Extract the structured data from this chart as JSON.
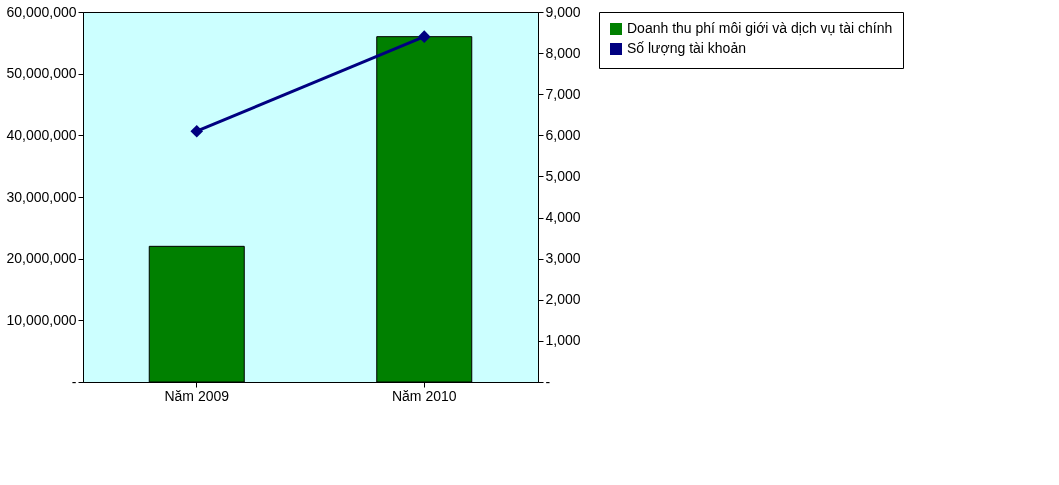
{
  "chart_data": {
    "type": "bar",
    "categories": [
      "Năm 2009",
      "Năm 2010"
    ],
    "series": [
      {
        "name": "Doanh thu phí môi giới và dịch vụ tài chính",
        "color": "#008000",
        "values": [
          22000000,
          56000000
        ]
      },
      {
        "name": "Số lượng tài khoản",
        "type": "line",
        "axis": "y2",
        "color": "#000080",
        "marker": "diamond",
        "values": [
          6100,
          8400
        ]
      }
    ],
    "ylim": [
      0,
      60000000
    ],
    "yticks": [
      {
        "value": 0,
        "label": "-"
      },
      {
        "value": 10000000,
        "label": "10,000,000"
      },
      {
        "value": 20000000,
        "label": "20,000,000"
      },
      {
        "value": 30000000,
        "label": "30,000,000"
      },
      {
        "value": 40000000,
        "label": "40,000,000"
      },
      {
        "value": 50000000,
        "label": "50,000,000"
      },
      {
        "value": 60000000,
        "label": "60,000,000"
      }
    ],
    "y2lim": [
      0,
      9000
    ],
    "y2ticks": [
      {
        "value": 0,
        "label": "-"
      },
      {
        "value": 1000,
        "label": "1,000"
      },
      {
        "value": 2000,
        "label": "2,000"
      },
      {
        "value": 3000,
        "label": "3,000"
      },
      {
        "value": 4000,
        "label": "4,000"
      },
      {
        "value": 5000,
        "label": "5,000"
      },
      {
        "value": 6000,
        "label": "6,000"
      },
      {
        "value": 7000,
        "label": "7,000"
      },
      {
        "value": 8000,
        "label": "8,000"
      },
      {
        "value": 9000,
        "label": "9,000"
      }
    ],
    "grid": false,
    "legend": "right"
  }
}
